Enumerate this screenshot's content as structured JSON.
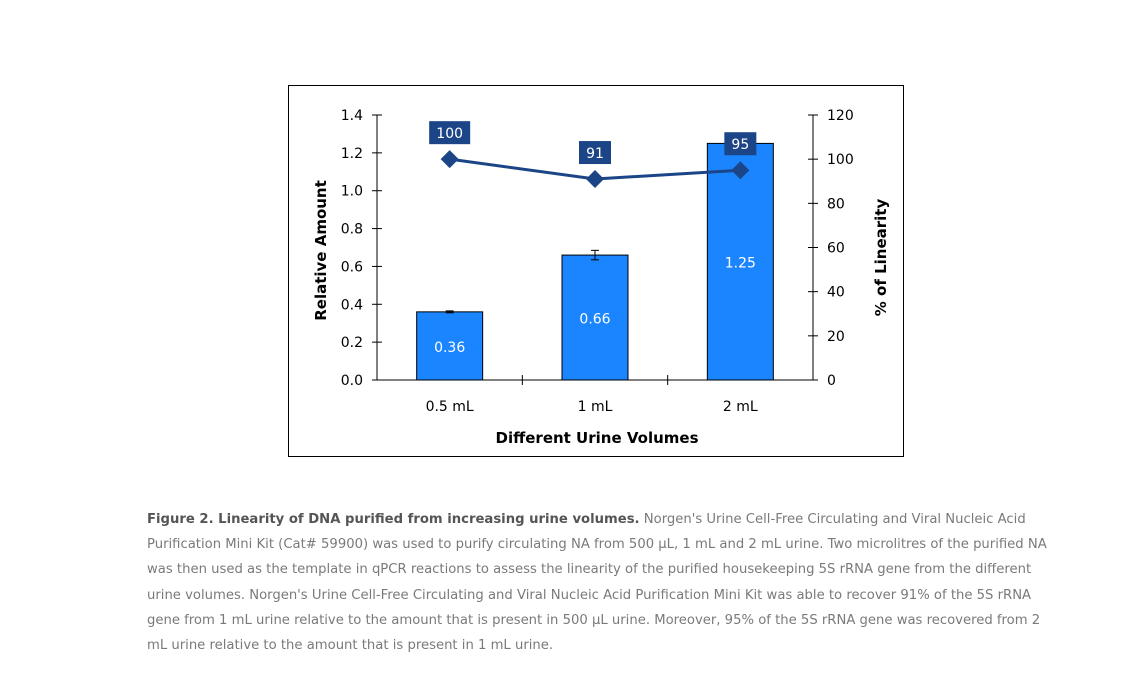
{
  "chart_data": {
    "type": "bar",
    "categories": [
      "0.5 mL",
      "1 mL",
      "2 mL"
    ],
    "xlabel": "Different Urine Volumes",
    "ylabel": "Relative Amount",
    "y2label": "% of Linearity",
    "ylim": [
      0,
      1.4
    ],
    "y2lim": [
      0,
      120
    ],
    "yticks": [
      "0.0",
      "0.2",
      "0.4",
      "0.6",
      "0.8",
      "1.0",
      "1.2",
      "1.4"
    ],
    "y2ticks": [
      "0",
      "20",
      "40",
      "60",
      "80",
      "100",
      "120"
    ],
    "grid": false,
    "series": [
      {
        "type": "bar",
        "axis": "left",
        "values": [
          0.36,
          0.66,
          1.25
        ],
        "labels": [
          "0.36",
          "0.66",
          "1.25"
        ],
        "error": [
          0.005,
          0.025,
          0.0
        ],
        "color": "#1a85ff"
      },
      {
        "type": "line",
        "axis": "right",
        "values": [
          100,
          91,
          95
        ],
        "labels": [
          "100",
          "91",
          "95"
        ],
        "color": "#1c4587",
        "marker": "diamond"
      }
    ]
  },
  "caption": {
    "bold": "Figure 2. Linearity of DNA purified from increasing urine volumes.",
    "text": " Norgen's Urine Cell-Free Circulating and Viral Nucleic Acid Purification Mini Kit (Cat# 59900) was used to purify circulating NA from 500 µL, 1 mL and 2 mL urine. Two microlitres of the purified NA was then used as the template in qPCR reactions to assess the linearity of the purified housekeeping 5S rRNA gene from the different urine volumes. Norgen's Urine Cell-Free Circulating and Viral Nucleic Acid Purification Mini Kit was able to recover 91% of the 5S rRNA gene from 1 mL urine relative to the amount that is present in 500 µL urine. Moreover, 95% of the 5S rRNA gene was recovered from 2 mL urine relative to the amount that is present in 1 mL urine."
  }
}
